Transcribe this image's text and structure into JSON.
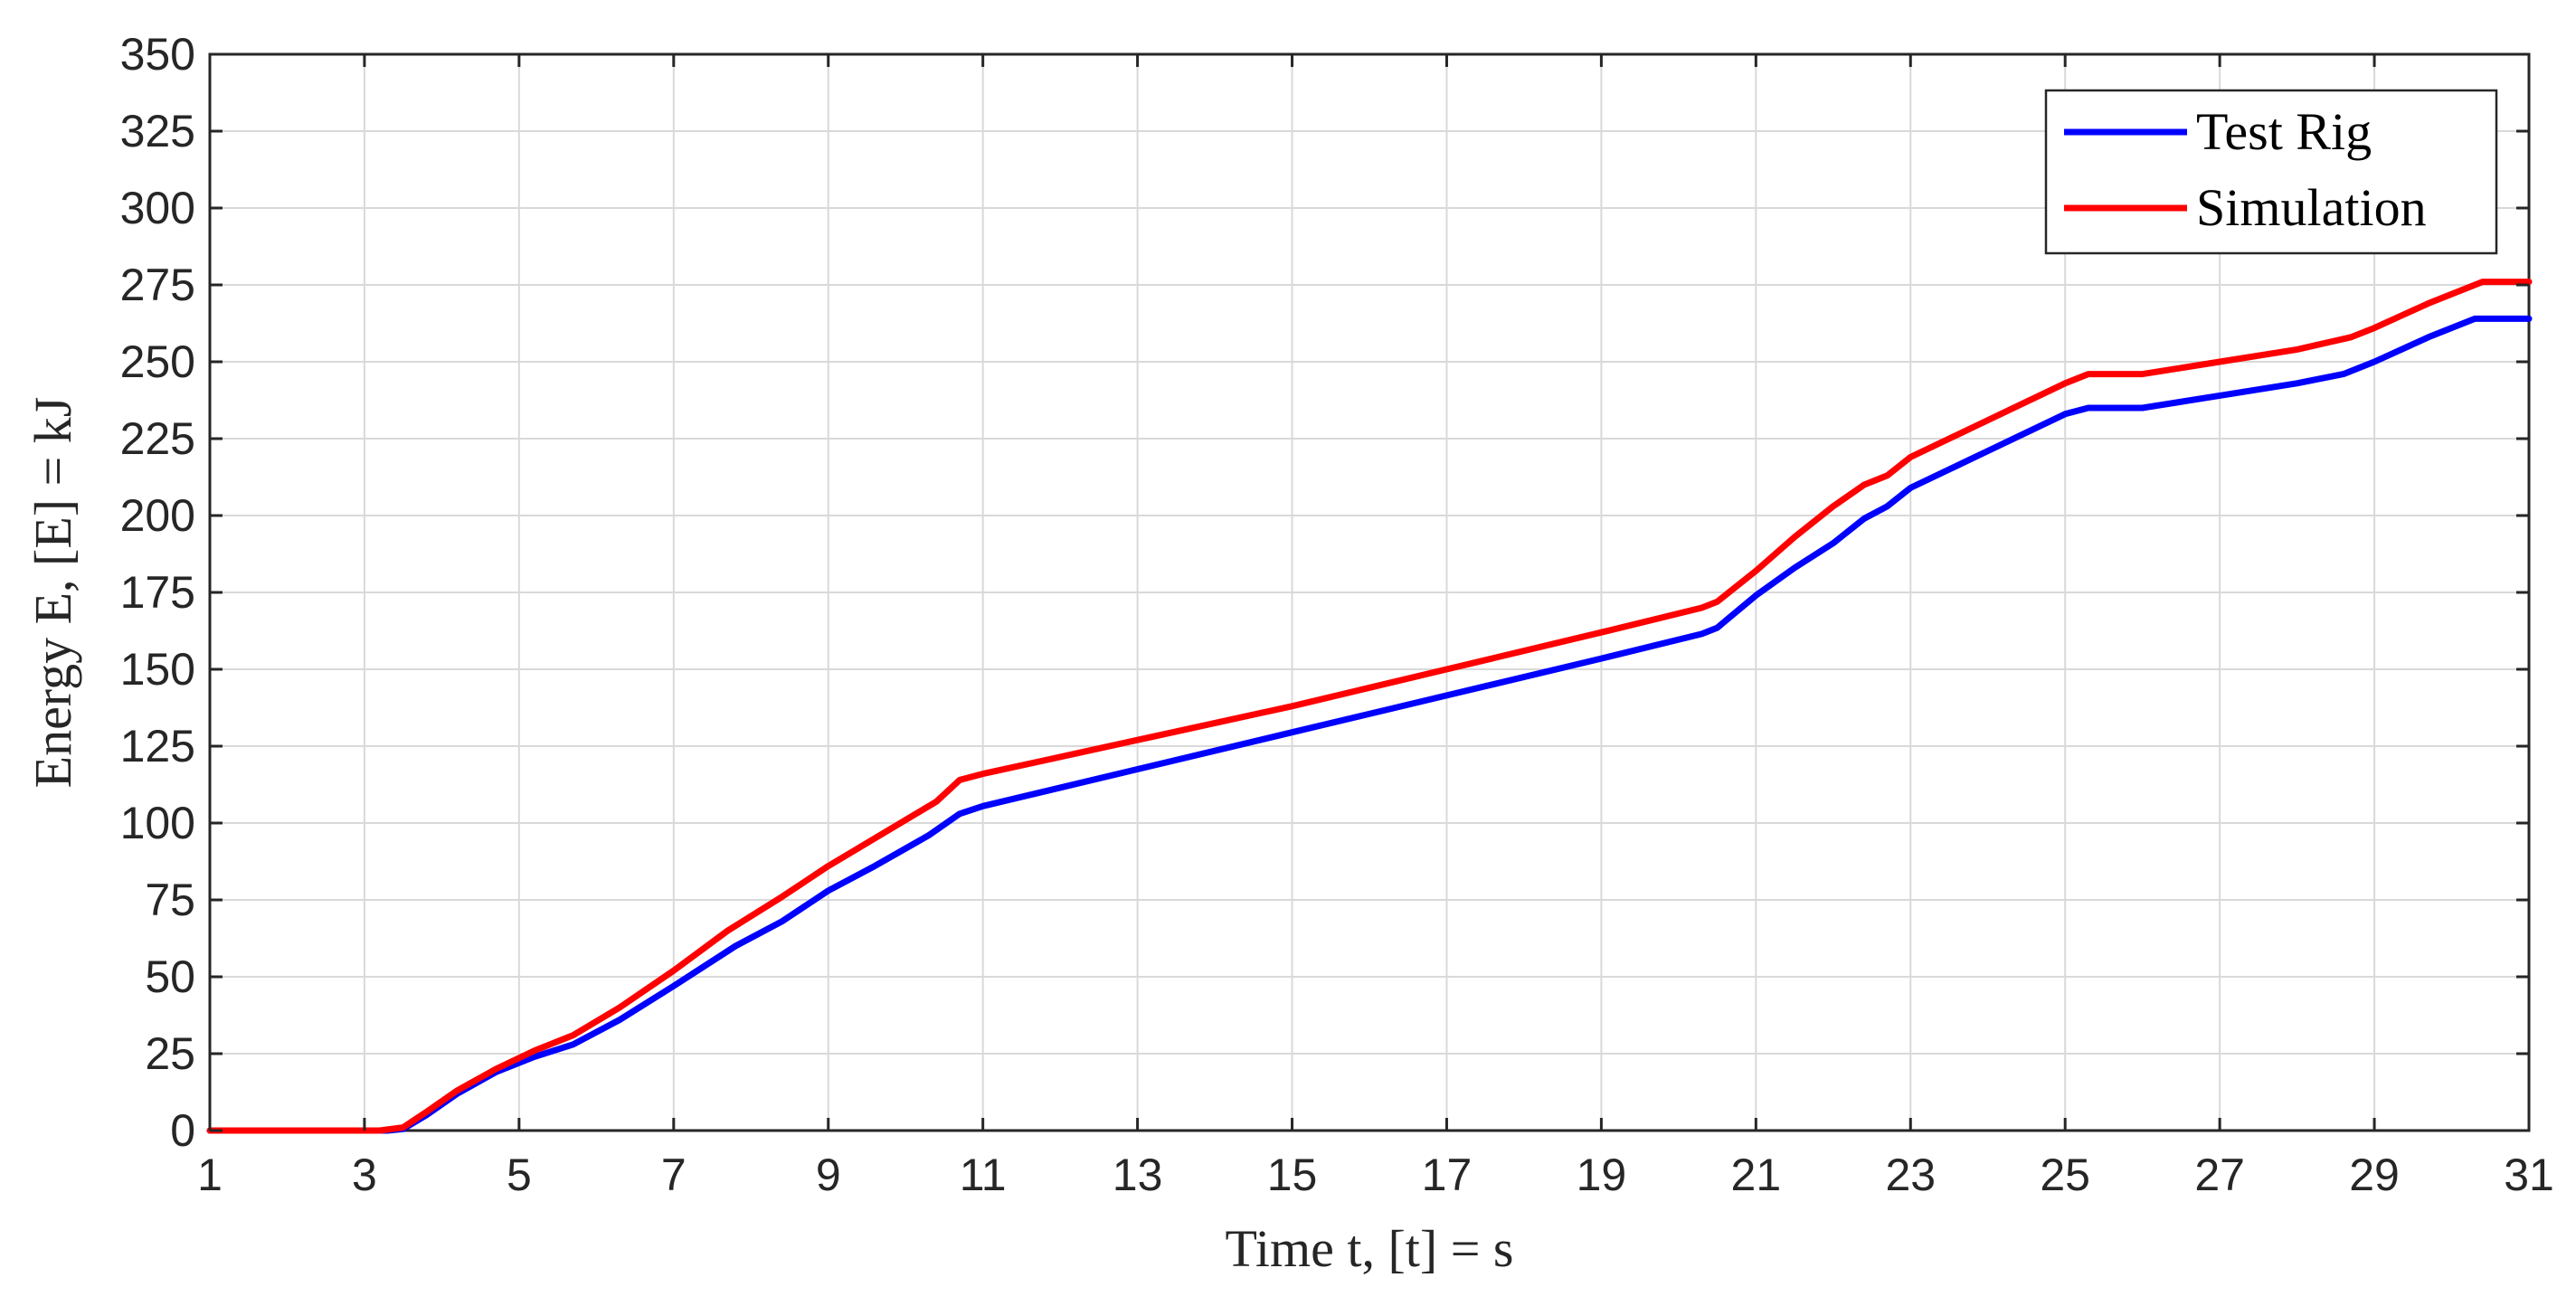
{
  "chart_data": {
    "type": "line",
    "title": "",
    "xlabel": "Time t, [t] = s",
    "ylabel": "Energy E, [E] = kJ",
    "xlim": [
      1,
      31
    ],
    "ylim": [
      0,
      350
    ],
    "xticks": [
      "1",
      "3",
      "5",
      "7",
      "9",
      "11",
      "13",
      "15",
      "17",
      "19",
      "21",
      "23",
      "25",
      "27",
      "29",
      "31"
    ],
    "yticks": [
      "0",
      "25",
      "50",
      "75",
      "100",
      "125",
      "150",
      "175",
      "200",
      "225",
      "250",
      "275",
      "300",
      "325",
      "350"
    ],
    "grid": true,
    "legend_position": "top-right",
    "series": [
      {
        "name": "Test Rig",
        "color": "#0000ff",
        "points": [
          [
            1,
            0
          ],
          [
            3.3,
            0
          ],
          [
            3.5,
            0.5
          ],
          [
            3.8,
            5
          ],
          [
            4.2,
            12
          ],
          [
            4.7,
            19
          ],
          [
            5.2,
            24
          ],
          [
            5.7,
            28
          ],
          [
            6.3,
            36
          ],
          [
            7,
            47
          ],
          [
            7.8,
            60
          ],
          [
            8.4,
            68
          ],
          [
            9,
            78
          ],
          [
            9.6,
            86
          ],
          [
            10.3,
            96
          ],
          [
            10.7,
            103
          ],
          [
            11,
            105.5
          ],
          [
            13,
            117.5
          ],
          [
            15,
            129.5
          ],
          [
            17,
            141.5
          ],
          [
            19,
            153.5
          ],
          [
            20.3,
            161.5
          ],
          [
            20.5,
            163.5
          ],
          [
            21,
            174
          ],
          [
            21.5,
            183
          ],
          [
            22,
            191
          ],
          [
            22.4,
            199
          ],
          [
            22.7,
            203
          ],
          [
            23,
            209
          ],
          [
            23.5,
            215
          ],
          [
            24,
            221
          ],
          [
            24.5,
            227
          ],
          [
            25,
            233
          ],
          [
            25.3,
            235
          ],
          [
            26,
            235
          ],
          [
            27,
            239
          ],
          [
            28,
            243
          ],
          [
            28.6,
            246
          ],
          [
            29,
            250
          ],
          [
            29.7,
            258
          ],
          [
            30.3,
            264
          ],
          [
            30.5,
            264
          ],
          [
            31,
            264
          ]
        ]
      },
      {
        "name": "Simulation",
        "color": "#ff0000",
        "points": [
          [
            1,
            0
          ],
          [
            3.2,
            0
          ],
          [
            3.5,
            1
          ],
          [
            3.8,
            6
          ],
          [
            4.2,
            13
          ],
          [
            4.7,
            20
          ],
          [
            5.2,
            26
          ],
          [
            5.7,
            31
          ],
          [
            6.3,
            40
          ],
          [
            7,
            52
          ],
          [
            7.7,
            65
          ],
          [
            8.4,
            76
          ],
          [
            9,
            86
          ],
          [
            9.6,
            95
          ],
          [
            10.4,
            107
          ],
          [
            10.7,
            114
          ],
          [
            11,
            116
          ],
          [
            13,
            127
          ],
          [
            15,
            138
          ],
          [
            17,
            150
          ],
          [
            19,
            162
          ],
          [
            20.3,
            170
          ],
          [
            20.5,
            172
          ],
          [
            21,
            182
          ],
          [
            21.5,
            193
          ],
          [
            22,
            203
          ],
          [
            22.4,
            210
          ],
          [
            22.7,
            213
          ],
          [
            23,
            219
          ],
          [
            23.5,
            225
          ],
          [
            24,
            231
          ],
          [
            24.5,
            237
          ],
          [
            25,
            243
          ],
          [
            25.3,
            246
          ],
          [
            26,
            246
          ],
          [
            26.5,
            248
          ],
          [
            27,
            250
          ],
          [
            28,
            254
          ],
          [
            28.7,
            258
          ],
          [
            29,
            261
          ],
          [
            29.7,
            269
          ],
          [
            30.4,
            276
          ],
          [
            30.6,
            276
          ],
          [
            31,
            276
          ]
        ]
      }
    ]
  }
}
